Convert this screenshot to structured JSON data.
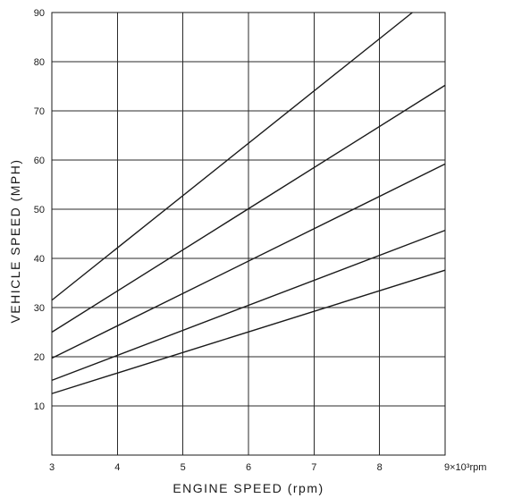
{
  "chart_data": {
    "type": "line",
    "title": "",
    "xlabel": "ENGINE SPEED (rpm)",
    "ylabel": "VEHICLE SPEED (MPH)",
    "xlim": [
      3,
      9
    ],
    "ylim": [
      0,
      90
    ],
    "x_ticks": [
      "3",
      "4",
      "5",
      "6",
      "7",
      "8",
      "9×10³rpm"
    ],
    "y_ticks": [
      "10",
      "20",
      "30",
      "40",
      "50",
      "60",
      "70",
      "80",
      "90"
    ],
    "grid": true,
    "legend": "none",
    "series": [
      {
        "x": [
          3,
          8.5
        ],
        "y": [
          31.5,
          90
        ]
      },
      {
        "x": [
          3,
          9
        ],
        "y": [
          25,
          75.2
        ]
      },
      {
        "x": [
          3,
          9
        ],
        "y": [
          19.7,
          59.2
        ]
      },
      {
        "x": [
          3,
          9
        ],
        "y": [
          15.2,
          45.7
        ]
      },
      {
        "x": [
          3,
          9
        ],
        "y": [
          12.5,
          37.6
        ]
      }
    ]
  }
}
